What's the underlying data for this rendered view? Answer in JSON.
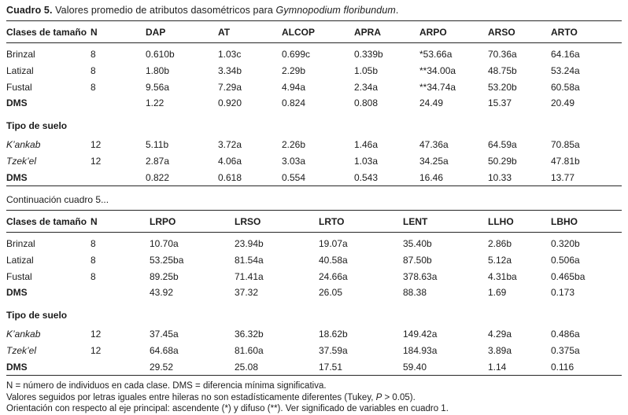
{
  "title": {
    "prefix": "Cuadro 5.",
    "body": " Valores promedio de atributos dasométricos para ",
    "species": "Gymnopodium floribundum",
    "suffix": "."
  },
  "continuation_caption": "Continuación cuadro 5...",
  "table1": {
    "headers": [
      "Clases de tamaño",
      "N",
      "DAP",
      "AT",
      "ALCOP",
      "APRA",
      "ARPO",
      "ARSO",
      "ARTO"
    ],
    "size_class_rows": [
      {
        "label": "Brinzal",
        "style": "normal",
        "values": [
          "8",
          "0.610b",
          "1.03c",
          "0.699c",
          "0.339b",
          "*53.66a",
          "70.36a",
          "64.16a"
        ]
      },
      {
        "label": "Latizal",
        "style": "normal",
        "values": [
          "8",
          "1.80b",
          "3.34b",
          "2.29b",
          "1.05b",
          "**34.00a",
          "48.75b",
          "53.24a"
        ]
      },
      {
        "label": "Fustal",
        "style": "normal",
        "values": [
          "8",
          "9.56a",
          "7.29a",
          "4.94a",
          "2.34a",
          "**34.74a",
          "53.20b",
          "60.58a"
        ]
      },
      {
        "label": "DMS",
        "style": "bold",
        "values": [
          "",
          "1.22",
          "0.920",
          "0.824",
          "0.808",
          "24.49",
          "15.37",
          "20.49"
        ]
      }
    ],
    "section_label": "Tipo de suelo",
    "soil_rows": [
      {
        "label": "K’ankab",
        "style": "italic",
        "values": [
          "12",
          "5.11b",
          "3.72a",
          "2.26b",
          "1.46a",
          "47.36a",
          "64.59a",
          "70.85a"
        ]
      },
      {
        "label": "Tzek’el",
        "style": "italic",
        "values": [
          "12",
          "2.87a",
          "4.06a",
          "3.03a",
          "1.03a",
          "34.25a",
          "50.29b",
          "47.81b"
        ]
      },
      {
        "label": "DMS",
        "style": "bold",
        "values": [
          "",
          "0.822",
          "0.618",
          "0.554",
          "0.543",
          "16.46",
          "10.33",
          "13.77"
        ]
      }
    ]
  },
  "table2": {
    "headers": [
      "Clases de tamaño",
      "N",
      "LRPO",
      "LRSO",
      "LRTO",
      "LENT",
      "LLHO",
      "LBHO"
    ],
    "size_class_rows": [
      {
        "label": "Brinzal",
        "style": "normal",
        "values": [
          "8",
          "10.70a",
          "23.94b",
          "19.07a",
          "35.40b",
          "2.86b",
          "0.320b"
        ]
      },
      {
        "label": "Latizal",
        "style": "normal",
        "values": [
          "8",
          "53.25ba",
          "81.54a",
          "40.58a",
          "87.50b",
          "5.12a",
          "0.506a"
        ]
      },
      {
        "label": "Fustal",
        "style": "normal",
        "values": [
          "8",
          "89.25b",
          "71.41a",
          "24.66a",
          "378.63a",
          "4.31ba",
          "0.465ba"
        ]
      },
      {
        "label": "DMS",
        "style": "bold",
        "values": [
          "",
          "43.92",
          "37.32",
          "26.05",
          "88.38",
          "1.69",
          "0.173"
        ]
      }
    ],
    "section_label": "Tipo de suelo",
    "soil_rows": [
      {
        "label": "K’ankab",
        "style": "italic",
        "values": [
          "12",
          "37.45a",
          "36.32b",
          "18.62b",
          "149.42a",
          "4.29a",
          "0.486a"
        ]
      },
      {
        "label": "Tzek’el",
        "style": "italic",
        "values": [
          "12",
          "64.68a",
          "81.60a",
          "37.59a",
          "184.93a",
          "3.89a",
          "0.375a"
        ]
      },
      {
        "label": "DMS",
        "style": "bold",
        "values": [
          "",
          "29.52",
          "25.08",
          "17.51",
          "59.40",
          "1.14",
          "0.116"
        ]
      }
    ]
  },
  "footnotes": {
    "line1": "N = número de individuos en cada clase. DMS = diferencia mínima significativa.",
    "line2_pre": "Valores seguidos por letras iguales entre hileras no son estadísticamente diferentes (Tukey, ",
    "line2_italic": "P",
    "line2_post": " > 0.05).",
    "line3": "Orientación con respecto al eje principal: ascendente (*) y difuso (**). Ver significado de variables en cuadro 1."
  }
}
